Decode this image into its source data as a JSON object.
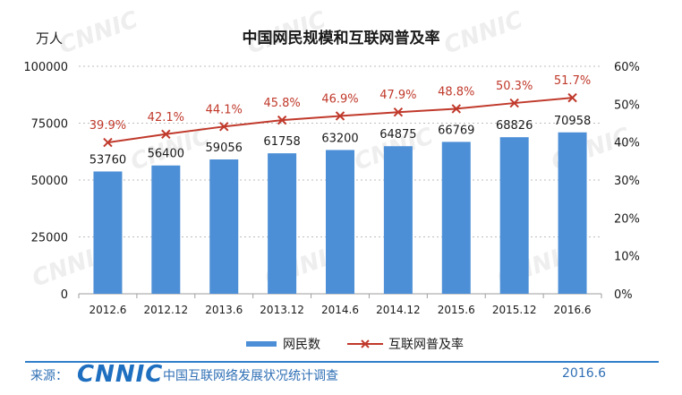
{
  "chart_data": {
    "type": "bar",
    "title": "中国网民规模和互联网普及率",
    "y_unit_label": "万人",
    "categories": [
      "2012.6",
      "2012.12",
      "2013.6",
      "2013.12",
      "2014.6",
      "2014.12",
      "2015.6",
      "2015.12",
      "2016.6"
    ],
    "series": [
      {
        "name": "网民数",
        "type": "bar",
        "axis": "left",
        "color": "#4d8fd6",
        "values": [
          53760,
          56400,
          59056,
          61758,
          63200,
          64875,
          66769,
          68826,
          70958
        ]
      },
      {
        "name": "互联网普及率",
        "type": "line",
        "axis": "right",
        "color": "#c0392b",
        "values": [
          39.9,
          42.1,
          44.1,
          45.8,
          46.9,
          47.9,
          48.8,
          50.3,
          51.7
        ],
        "labels": [
          "39.9%",
          "42.1%",
          "44.1%",
          "45.8%",
          "46.9%",
          "47.9%",
          "48.8%",
          "50.3%",
          "51.7%"
        ]
      }
    ],
    "ylim_left": [
      0,
      100000
    ],
    "yticks_left": [
      0,
      25000,
      50000,
      75000,
      100000
    ],
    "ylim_right": [
      0,
      60
    ],
    "yticks_right": [
      "0%",
      "10%",
      "20%",
      "30%",
      "40%",
      "50%",
      "60%"
    ],
    "legend_position": "bottom",
    "grid": true
  },
  "footer": {
    "source_label": "来源：",
    "logo_text": "CNNIC",
    "report_name": "中国互联网络发展状况统计调查",
    "date": "2016.6"
  },
  "watermark_text": "CNNIC"
}
